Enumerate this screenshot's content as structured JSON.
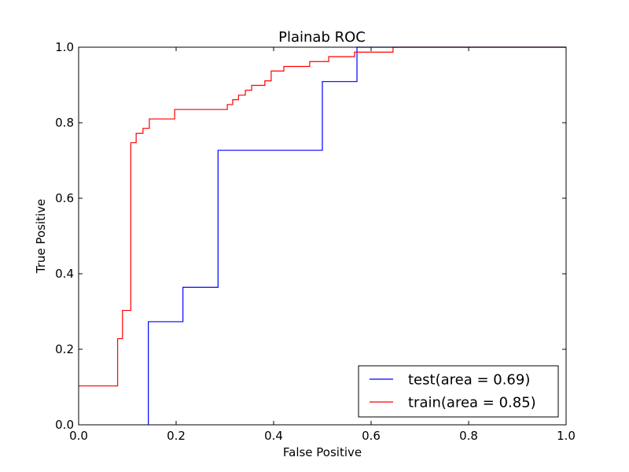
{
  "chart_data": {
    "type": "line",
    "title": "Plainab ROC",
    "xlabel": "False Positive",
    "ylabel": "True Positive",
    "xlim": [
      0.0,
      1.0
    ],
    "ylim": [
      0.0,
      1.0
    ],
    "xticks": [
      "0.0",
      "0.2",
      "0.4",
      "0.6",
      "0.8",
      "1.0"
    ],
    "yticks": [
      "0.0",
      "0.2",
      "0.4",
      "0.6",
      "0.8",
      "1.0"
    ],
    "grid": false,
    "legend_position": "bottom-right",
    "series": [
      {
        "name": "test(area = 0.69)",
        "color": "#0000ff",
        "step": true,
        "x": [
          0.143,
          0.143,
          0.214,
          0.214,
          0.286,
          0.286,
          0.5,
          0.5,
          0.571,
          0.571,
          1.0
        ],
        "y": [
          0.0,
          0.273,
          0.273,
          0.364,
          0.364,
          0.727,
          0.727,
          0.909,
          0.909,
          1.0,
          1.0
        ]
      },
      {
        "name": "train(area = 0.85)",
        "color": "#ff0000",
        "step": true,
        "x": [
          0.0,
          0.08,
          0.08,
          0.09,
          0.09,
          0.1,
          0.1,
          0.107,
          0.107,
          0.118,
          0.118,
          0.132,
          0.132,
          0.145,
          0.145,
          0.197,
          0.197,
          0.305,
          0.305,
          0.316,
          0.316,
          0.328,
          0.328,
          0.342,
          0.342,
          0.355,
          0.355,
          0.382,
          0.382,
          0.395,
          0.395,
          0.421,
          0.421,
          0.474,
          0.474,
          0.513,
          0.513,
          0.566,
          0.566,
          0.645,
          0.645,
          1.0
        ],
        "y": [
          0.103,
          0.103,
          0.228,
          0.228,
          0.303,
          0.303,
          0.303,
          0.303,
          0.747,
          0.747,
          0.772,
          0.772,
          0.785,
          0.785,
          0.81,
          0.81,
          0.835,
          0.835,
          0.848,
          0.848,
          0.861,
          0.861,
          0.873,
          0.873,
          0.886,
          0.886,
          0.899,
          0.899,
          0.911,
          0.911,
          0.937,
          0.937,
          0.949,
          0.949,
          0.962,
          0.962,
          0.975,
          0.975,
          0.987,
          0.987,
          1.0,
          1.0
        ]
      }
    ]
  }
}
